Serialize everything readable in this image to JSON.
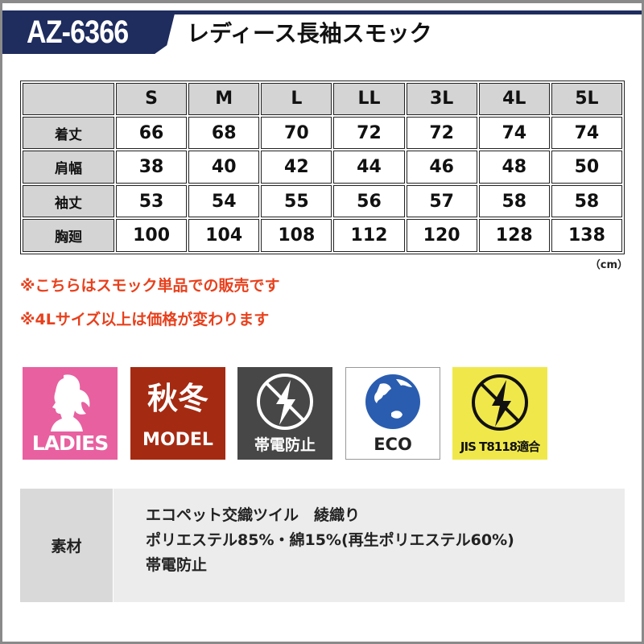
{
  "header": {
    "model": "AZ-6366",
    "title": "レディース長袖スモック",
    "brand_color": "#1e2c5e"
  },
  "size_table": {
    "columns": [
      "S",
      "M",
      "L",
      "LL",
      "3L",
      "4L",
      "5L"
    ],
    "rows": [
      {
        "label": "着丈",
        "values": [
          "66",
          "68",
          "70",
          "72",
          "72",
          "74",
          "74"
        ]
      },
      {
        "label": "肩幅",
        "values": [
          "38",
          "40",
          "42",
          "44",
          "46",
          "48",
          "50"
        ]
      },
      {
        "label": "袖丈",
        "values": [
          "53",
          "54",
          "55",
          "56",
          "57",
          "58",
          "58"
        ]
      },
      {
        "label": "胸廻",
        "values": [
          "100",
          "104",
          "108",
          "112",
          "120",
          "128",
          "138"
        ]
      }
    ],
    "unit": "（cm）"
  },
  "notes": [
    "※こちらはスモック単品での販売です",
    "※4Lサイズ以上は価格が変わります"
  ],
  "icons": [
    {
      "name": "ladies-icon",
      "label": "LADIES",
      "color": "#e860a0"
    },
    {
      "name": "autumn-winter-icon",
      "label_top": "秋冬",
      "label": "MODEL",
      "color": "#a52a12"
    },
    {
      "name": "antistatic-icon",
      "label": "帯電防止",
      "color": "#474747"
    },
    {
      "name": "eco-icon",
      "label": "ECO",
      "color": "#2a5db0"
    },
    {
      "name": "jis-icon",
      "label": "JIS T8118適合",
      "color": "#f0e84a"
    }
  ],
  "material": {
    "label": "素材",
    "lines": [
      "エコペット交織ツイル　綾織り",
      "ポリエステル85%・綿15%(再生ポリエステル60%)",
      "帯電防止"
    ]
  }
}
